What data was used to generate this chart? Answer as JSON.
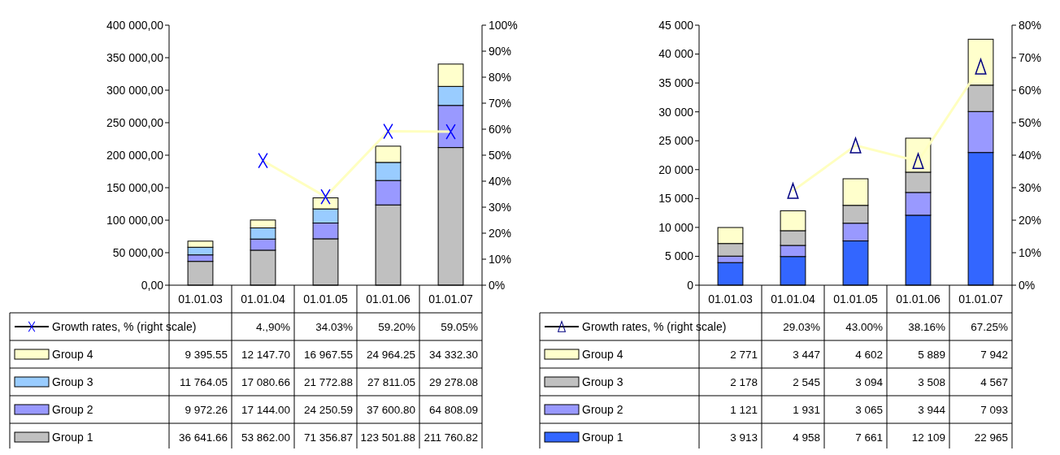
{
  "chart_data": [
    {
      "type": "bar",
      "stacked": true,
      "legend": "bottom",
      "categories": [
        "01.01.03",
        "01.01.04",
        "01.01.05",
        "01.01.06",
        "01.01.07"
      ],
      "ylim": [
        0,
        400000
      ],
      "yticks": [
        {
          "value": 0,
          "label": "0,00"
        },
        {
          "value": 50000,
          "label": "50 000,00"
        },
        {
          "value": 100000,
          "label": "100 000,00"
        },
        {
          "value": 150000,
          "label": "150 000,00"
        },
        {
          "value": 200000,
          "label": "200 000,00"
        },
        {
          "value": 250000,
          "label": "250 000,00"
        },
        {
          "value": 300000,
          "label": "300 000,00"
        },
        {
          "value": 350000,
          "label": "350 000,00"
        },
        {
          "value": 400000,
          "label": "400 000,00"
        }
      ],
      "y2lim": [
        0,
        100
      ],
      "y2ticks": [
        {
          "value": 0,
          "label": "0%"
        },
        {
          "value": 10,
          "label": "10%"
        },
        {
          "value": 20,
          "label": "20%"
        },
        {
          "value": 30,
          "label": "30%"
        },
        {
          "value": 40,
          "label": "40%"
        },
        {
          "value": 50,
          "label": "50%"
        },
        {
          "value": 60,
          "label": "60%"
        },
        {
          "value": 70,
          "label": "70%"
        },
        {
          "value": 80,
          "label": "80%"
        },
        {
          "value": 90,
          "label": "90%"
        },
        {
          "value": 100,
          "label": "100%"
        }
      ],
      "series": [
        {
          "name": "Group 1",
          "color": "#c0c0c0",
          "values": [
            36641.66,
            53862.0,
            71356.87,
            123501.88,
            211760.82
          ],
          "value_labels": [
            "36 641.66",
            "53 862.00",
            "71 356.87",
            "123 501.88",
            "211 760.82"
          ]
        },
        {
          "name": "Group 2",
          "color": "#9999ff",
          "values": [
            9972.26,
            17144.0,
            24250.59,
            37600.8,
            64808.09
          ],
          "value_labels": [
            "9 972.26",
            "17 144.00",
            "24 250.59",
            "37 600.80",
            "64 808.09"
          ]
        },
        {
          "name": "Group 3",
          "color": "#99ccff",
          "values": [
            11764.05,
            17080.66,
            21772.88,
            27811.05,
            29278.08
          ],
          "value_labels": [
            "11 764.05",
            "17 080.66",
            "21 772.88",
            "27 811.05",
            "29 278.08"
          ]
        },
        {
          "name": "Group 4",
          "color": "#ffffcc",
          "values": [
            9395.55,
            12147.7,
            16967.55,
            24964.25,
            34332.3
          ],
          "value_labels": [
            "9 395.55",
            "12 147.70",
            "16 967.55",
            "24 964.25",
            "34 332.30"
          ]
        },
        {
          "name": "Growth rates, % (right scale)",
          "type": "line",
          "axis": "y2",
          "marker": "cross",
          "color": "#ffffc0",
          "colors": [
            "#0000ff",
            "#0000ff",
            "#0000ff",
            "#0000ff",
            "#0000ff"
          ],
          "values": [
            null,
            47.9,
            34.03,
            59.2,
            59.05
          ],
          "value_labels": [
            null,
            "4.,90%",
            "34.03%",
            "59.20%",
            "59.05%"
          ]
        }
      ]
    },
    {
      "type": "bar",
      "stacked": true,
      "legend": "bottom",
      "categories": [
        "01.01.03",
        "01.01.04",
        "01.01.05",
        "01.01.06",
        "01.01.07"
      ],
      "ylim": [
        0,
        45000
      ],
      "yticks": [
        0,
        {
          "value": 5000,
          "label": "5 000"
        },
        {
          "value": 10000,
          "label": "10 000"
        },
        {
          "value": 15000,
          "label": "15 000"
        },
        {
          "value": 20000,
          "label": "20 000"
        },
        {
          "value": 25000,
          "label": "25 000"
        },
        {
          "value": 30000,
          "label": "30 000"
        },
        {
          "value": 35000,
          "label": "35 000"
        },
        {
          "value": 40000,
          "label": "40 000"
        },
        {
          "value": 45000,
          "label": "45 000"
        }
      ],
      "y2lim": [
        0,
        80
      ],
      "y2ticks": [
        {
          "value": 0,
          "label": "0%"
        },
        {
          "value": 10,
          "label": "10%"
        },
        {
          "value": 20,
          "label": "20%"
        },
        {
          "value": 30,
          "label": "30%"
        },
        {
          "value": 40,
          "label": "40%"
        },
        {
          "value": 50,
          "label": "50%"
        },
        {
          "value": 60,
          "label": "60%"
        },
        {
          "value": 70,
          "label": "70%"
        },
        {
          "value": 80,
          "label": "80%"
        }
      ],
      "series": [
        {
          "name": "Group 1",
          "color": "#3366ff",
          "values": [
            3913,
            4958,
            7661,
            12109,
            22965
          ],
          "value_labels": [
            "3 913",
            "4 958",
            "7 661",
            "12 109",
            "22 965"
          ]
        },
        {
          "name": "Group 2",
          "color": "#9999ff",
          "values": [
            1121,
            1931,
            3065,
            3944,
            7093
          ],
          "value_labels": [
            "1 121",
            "1 931",
            "3 065",
            "3 944",
            "7 093"
          ]
        },
        {
          "name": "Group 3",
          "color": "#c0c0c0",
          "values": [
            2178,
            2545,
            3094,
            3508,
            4567
          ],
          "value_labels": [
            "2 178",
            "2 545",
            "3 094",
            "3 508",
            "4 567"
          ]
        },
        {
          "name": "Group 4",
          "color": "#ffffcc",
          "values": [
            2771,
            3447,
            4602,
            5889,
            7942
          ],
          "value_labels": [
            "2 771",
            "3 447",
            "4 602",
            "5 889",
            "7 942"
          ]
        },
        {
          "name": "Growth rates, % (right scale)",
          "type": "line",
          "axis": "y2",
          "marker": "triangle",
          "color": "#ffffc0",
          "colors": [
            "#000080",
            "#000080",
            "#000080",
            "#000080",
            "#000080"
          ],
          "values": [
            null,
            29.03,
            43.0,
            38.16,
            67.25
          ],
          "value_labels": [
            null,
            "29.03%",
            "43.00%",
            "38.16%",
            "67.25%"
          ]
        }
      ]
    }
  ]
}
